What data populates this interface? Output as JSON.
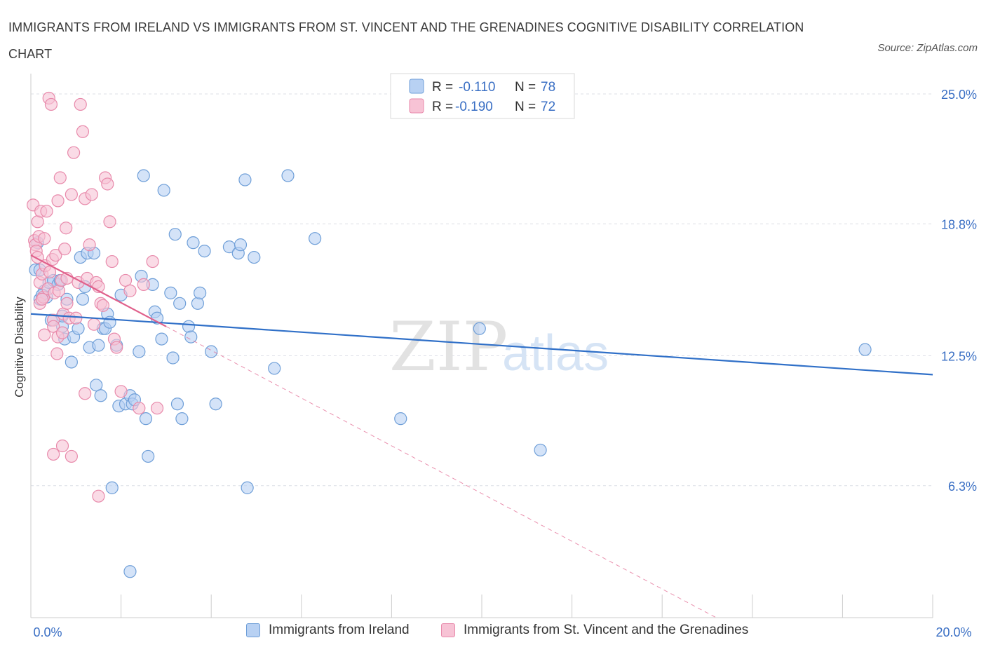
{
  "header": {
    "title": "IMMIGRANTS FROM IRELAND VS IMMIGRANTS FROM ST. VINCENT AND THE GRENADINES COGNITIVE DISABILITY CORRELATION CHART",
    "source": "Source: ZipAtlas.com"
  },
  "watermark": {
    "zip": "ZIP",
    "atlas": "atlas"
  },
  "colors": {
    "ireland_fill": "#b8d1f3",
    "ireland_stroke": "#6f9fd8",
    "ireland_line": "#3070c8",
    "svg_fill": "#f7c3d5",
    "svg_stroke": "#e88aab",
    "svg_line": "#e0608b",
    "tick_label": "#3a6fc4",
    "grid": "#dcdfe6"
  },
  "chart_data": {
    "type": "scatter",
    "xlabel": "",
    "ylabel": "Cognitive Disability",
    "xlim": [
      0,
      20
    ],
    "ylim": [
      0,
      25
    ],
    "x_tick_labels": [
      {
        "value": 0,
        "label": "0.0%"
      },
      {
        "value": 20,
        "label": "20.0%"
      }
    ],
    "y_tick_labels": [
      {
        "value": 6.3,
        "label": "6.3%"
      },
      {
        "value": 12.5,
        "label": "12.5%"
      },
      {
        "value": 18.8,
        "label": "18.8%"
      },
      {
        "value": 25.0,
        "label": "25.0%"
      }
    ],
    "grid": true,
    "legend_position": "top-center",
    "stats": [
      {
        "r_label": "R =",
        "r_value": "-0.110",
        "n_label": "N =",
        "n_value": "78"
      },
      {
        "r_label": "R =",
        "r_value": "-0.190",
        "n_label": "N =",
        "n_value": "72"
      }
    ],
    "series": [
      {
        "name": "Immigrants from Ireland",
        "trend": {
          "x1": 0,
          "y1": 14.5,
          "x2": 20,
          "y2": 11.6
        },
        "points": [
          [
            0.1,
            16.6
          ],
          [
            0.15,
            17.9
          ],
          [
            0.2,
            16.6
          ],
          [
            0.2,
            15.2
          ],
          [
            0.3,
            15.6
          ],
          [
            0.35,
            15.3
          ],
          [
            0.4,
            16.0
          ],
          [
            0.45,
            14.2
          ],
          [
            0.5,
            16.1
          ],
          [
            0.6,
            15.9
          ],
          [
            0.65,
            16.1
          ],
          [
            0.7,
            13.9
          ],
          [
            0.7,
            14.4
          ],
          [
            0.75,
            13.3
          ],
          [
            0.8,
            15.2
          ],
          [
            0.9,
            12.2
          ],
          [
            0.95,
            13.4
          ],
          [
            1.05,
            13.8
          ],
          [
            1.1,
            17.2
          ],
          [
            1.15,
            15.2
          ],
          [
            1.2,
            15.8
          ],
          [
            1.25,
            17.4
          ],
          [
            1.3,
            12.9
          ],
          [
            1.4,
            17.4
          ],
          [
            1.45,
            11.1
          ],
          [
            1.5,
            13.0
          ],
          [
            1.55,
            10.6
          ],
          [
            1.6,
            13.8
          ],
          [
            1.65,
            13.8
          ],
          [
            1.7,
            14.5
          ],
          [
            1.75,
            14.1
          ],
          [
            1.9,
            13.0
          ],
          [
            1.95,
            10.1
          ],
          [
            2.0,
            15.4
          ],
          [
            2.1,
            10.2
          ],
          [
            2.2,
            10.6
          ],
          [
            2.25,
            10.2
          ],
          [
            2.3,
            10.4
          ],
          [
            2.4,
            12.7
          ],
          [
            2.45,
            16.3
          ],
          [
            2.5,
            21.1
          ],
          [
            2.55,
            9.5
          ],
          [
            2.6,
            7.7
          ],
          [
            2.7,
            15.9
          ],
          [
            2.75,
            14.6
          ],
          [
            2.8,
            14.3
          ],
          [
            2.9,
            13.3
          ],
          [
            2.95,
            20.4
          ],
          [
            3.1,
            15.5
          ],
          [
            3.15,
            12.4
          ],
          [
            3.2,
            18.3
          ],
          [
            3.25,
            10.2
          ],
          [
            3.3,
            15.0
          ],
          [
            3.35,
            9.5
          ],
          [
            3.5,
            13.9
          ],
          [
            3.55,
            13.4
          ],
          [
            3.6,
            17.9
          ],
          [
            3.7,
            15.0
          ],
          [
            3.75,
            15.5
          ],
          [
            3.85,
            17.5
          ],
          [
            4.0,
            12.7
          ],
          [
            4.1,
            10.2
          ],
          [
            4.4,
            17.7
          ],
          [
            4.6,
            17.4
          ],
          [
            4.65,
            17.8
          ],
          [
            4.75,
            20.9
          ],
          [
            4.8,
            6.2
          ],
          [
            4.95,
            17.2
          ],
          [
            5.4,
            11.9
          ],
          [
            5.7,
            21.1
          ],
          [
            6.3,
            18.1
          ],
          [
            2.2,
            2.2
          ],
          [
            1.8,
            6.2
          ],
          [
            8.2,
            9.5
          ],
          [
            9.95,
            13.8
          ],
          [
            11.3,
            8.0
          ],
          [
            18.5,
            12.8
          ],
          [
            0.25,
            15.4
          ]
        ]
      },
      {
        "name": "Immigrants from St. Vincent and the Grenadines",
        "trend": {
          "x1": 0,
          "y1": 17.3,
          "x2": 3.0,
          "y2": 13.9
        },
        "trend_dashed": {
          "x1": 3.0,
          "y1": 13.9,
          "x2": 15.2,
          "y2": 0
        },
        "points": [
          [
            0.05,
            19.7
          ],
          [
            0.08,
            18.0
          ],
          [
            0.1,
            17.8
          ],
          [
            0.12,
            17.5
          ],
          [
            0.15,
            18.9
          ],
          [
            0.18,
            18.2
          ],
          [
            0.2,
            16.0
          ],
          [
            0.2,
            15.0
          ],
          [
            0.22,
            19.4
          ],
          [
            0.25,
            16.4
          ],
          [
            0.28,
            15.3
          ],
          [
            0.3,
            18.1
          ],
          [
            0.32,
            16.8
          ],
          [
            0.35,
            19.4
          ],
          [
            0.38,
            15.7
          ],
          [
            0.4,
            24.8
          ],
          [
            0.42,
            16.5
          ],
          [
            0.45,
            24.5
          ],
          [
            0.48,
            17.1
          ],
          [
            0.5,
            14.2
          ],
          [
            0.5,
            13.9
          ],
          [
            0.52,
            15.5
          ],
          [
            0.55,
            17.3
          ],
          [
            0.58,
            12.6
          ],
          [
            0.6,
            19.9
          ],
          [
            0.6,
            13.4
          ],
          [
            0.62,
            15.6
          ],
          [
            0.65,
            21.0
          ],
          [
            0.68,
            16.1
          ],
          [
            0.7,
            13.6
          ],
          [
            0.72,
            14.5
          ],
          [
            0.75,
            17.6
          ],
          [
            0.78,
            18.6
          ],
          [
            0.8,
            16.2
          ],
          [
            0.8,
            15.0
          ],
          [
            0.85,
            14.3
          ],
          [
            0.9,
            20.2
          ],
          [
            0.95,
            22.2
          ],
          [
            1.0,
            14.3
          ],
          [
            1.05,
            16.0
          ],
          [
            1.1,
            24.5
          ],
          [
            1.15,
            23.2
          ],
          [
            1.2,
            20.0
          ],
          [
            1.25,
            16.2
          ],
          [
            1.3,
            17.8
          ],
          [
            1.35,
            20.2
          ],
          [
            1.4,
            14.0
          ],
          [
            1.45,
            16.0
          ],
          [
            1.5,
            15.8
          ],
          [
            1.55,
            15.0
          ],
          [
            1.6,
            14.9
          ],
          [
            1.65,
            21.0
          ],
          [
            1.7,
            20.7
          ],
          [
            1.75,
            18.9
          ],
          [
            1.8,
            17.0
          ],
          [
            1.85,
            13.3
          ],
          [
            1.9,
            12.9
          ],
          [
            2.0,
            10.8
          ],
          [
            2.1,
            16.1
          ],
          [
            2.2,
            15.6
          ],
          [
            2.4,
            10.0
          ],
          [
            2.5,
            15.9
          ],
          [
            2.7,
            17.0
          ],
          [
            2.8,
            10.0
          ],
          [
            0.3,
            13.5
          ],
          [
            0.5,
            7.8
          ],
          [
            0.7,
            8.2
          ],
          [
            0.9,
            7.7
          ],
          [
            1.5,
            5.8
          ],
          [
            1.2,
            10.7
          ],
          [
            0.15,
            17.2
          ],
          [
            0.25,
            15.2
          ]
        ]
      }
    ]
  },
  "legend_bottom": [
    {
      "label": "Immigrants from Ireland"
    },
    {
      "label": "Immigrants from St. Vincent and the Grenadines"
    }
  ]
}
